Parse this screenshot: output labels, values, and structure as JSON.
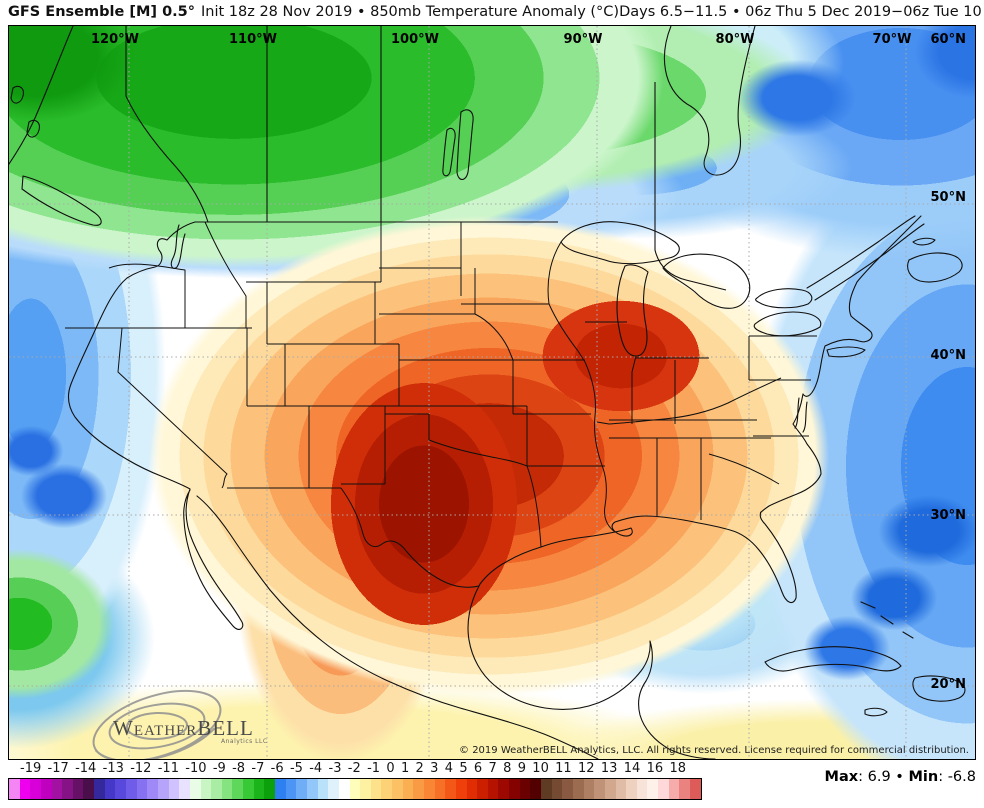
{
  "title": {
    "model": "GFS Ensemble [M] 0.5°",
    "init": "Init 18z 28 Nov 2019 • 850mb Temperature Anomaly (°C)",
    "valid_range": "Days 6.5−11.5 • 06z Thu 5 Dec 2019−06z Tue 10 Dec 2019"
  },
  "map": {
    "lon_labels": [
      "120°W",
      "110°W",
      "100°W",
      "90°W",
      "80°W",
      "70°W"
    ],
    "lat_labels": [
      "60°N",
      "50°N",
      "40°N",
      "30°N",
      "20°N"
    ],
    "logo": {
      "brand": "WeatherBELL",
      "sub": "Analytics LLC"
    },
    "copyright": "© 2019 WeatherBELL Analytics, LLC. All rights reserved. License required for commercial distribution."
  },
  "colorbar": {
    "tick_labels": [
      "-19",
      "-17",
      "-14",
      "-13",
      "-12",
      "-11",
      "-10",
      "-9",
      "-8",
      "-7",
      "-6",
      "-5",
      "-4",
      "-3",
      "-2",
      "-1",
      "0",
      "1",
      "2",
      "3",
      "4",
      "5",
      "6",
      "7",
      "8",
      "9",
      "10",
      "11",
      "12",
      "13",
      "14",
      "16",
      "18"
    ],
    "cells": [
      "#f584f5",
      "#ee00ee",
      "#d800d8",
      "#bf00bf",
      "#a311a3",
      "#861386",
      "#661166",
      "#4a0f4a",
      "#34289c",
      "#4537c8",
      "#5948dc",
      "#6f5ce9",
      "#8671f1",
      "#9e89f7",
      "#b6a4fb",
      "#cfc2fe",
      "#e8e2ff",
      "#e9fce5",
      "#c9f4c4",
      "#a8eda3",
      "#85e380",
      "#5ed75a",
      "#38c936",
      "#1bb51b",
      "#0da00d",
      "#2e7ff0",
      "#4d95f4",
      "#6fadf7",
      "#93c6f9",
      "#b9e1f9",
      "#dff2fb",
      "#ffffff",
      "#fffdba",
      "#fef1a2",
      "#fee28b",
      "#fdd276",
      "#fcc164",
      "#fbaf53",
      "#f99b44",
      "#f88635",
      "#f67027",
      "#f45819",
      "#ef400c",
      "#e02d03",
      "#cc1f00",
      "#b51300",
      "#9d0900",
      "#840200",
      "#6b0000",
      "#520000",
      "#5f3b24",
      "#744b32",
      "#895a41",
      "#9c6c51",
      "#ae7f63",
      "#c09278",
      "#d1a78e",
      "#e0bca6",
      "#eed1bf",
      "#f8e3d8",
      "#fdf1ea",
      "#ffd9d9",
      "#f5acab",
      "#ea8280",
      "#dd5b59"
    ]
  },
  "stats": {
    "max_label": "Max",
    "max_value": ": 6.9",
    "sep": " • ",
    "min_label": "Min",
    "min_value": ": -6.8"
  },
  "chart_data": {
    "type": "heatmap",
    "title": "GFS Ensemble [M] 0.5° 850mb Temperature Anomaly (°C), Days 6.5−11.5, 06z Thu 5 Dec 2019−06z Tue 10 Dec 2019",
    "units": "°C",
    "legend_position": "bottom",
    "scale_ticks": [
      -19,
      -17,
      -14,
      -13,
      -12,
      -11,
      -10,
      -9,
      -8,
      -7,
      -6,
      -5,
      -4,
      -3,
      -2,
      -1,
      0,
      1,
      2,
      3,
      4,
      5,
      6,
      7,
      8,
      9,
      10,
      11,
      12,
      13,
      14,
      16,
      18
    ],
    "domain_max": 6.9,
    "domain_min": -6.8,
    "graticule": {
      "longitudes_w": [
        120,
        110,
        100,
        90,
        80,
        70
      ],
      "latitudes_n": [
        60,
        50,
        40,
        30,
        20
      ]
    },
    "features": [
      {
        "region": "Southern Plains (TX/OK/KS)",
        "anomaly_c": "+5 to +7 (maximum, dark red core)"
      },
      {
        "region": "Upper Midwest / Corn Belt / Great Lakes west",
        "anomaly_c": "+3 to +6"
      },
      {
        "region": "Interior British Columbia / western Canada",
        "anomaly_c": "-4 to -6 (green)"
      },
      {
        "region": "Southern BC / band along 50°N",
        "anomaly_c": "-2 to -3 (blue)"
      },
      {
        "region": "Hudson Bay / eastern Canada / NW Atlantic",
        "anomaly_c": "-1 to -3 (blue)"
      },
      {
        "region": "Gulf of Mexico / Caribbean",
        "anomaly_c": "-1 to -2 (light blue)"
      },
      {
        "region": "Mexico interior",
        "anomaly_c": "+2 to +4 (orange)"
      }
    ]
  }
}
